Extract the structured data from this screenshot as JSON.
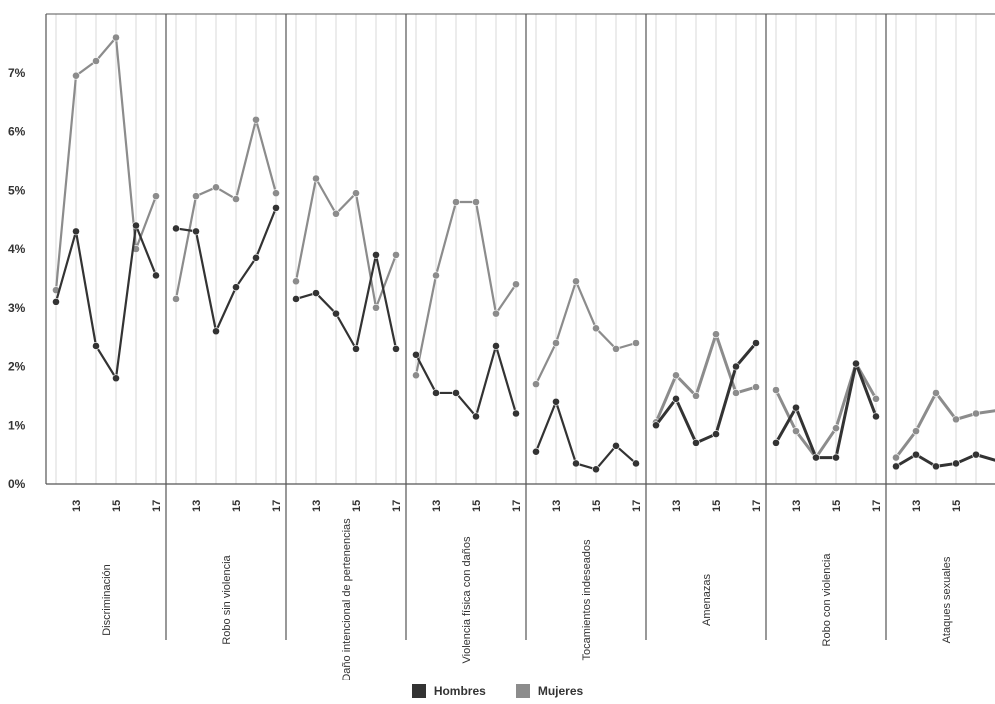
{
  "colors": {
    "hombres": "#333333",
    "mujeres": "#8c8c8c",
    "grid": "#d9d9d9",
    "divider": "#555555"
  },
  "chart_data": {
    "type": "line",
    "title": "",
    "xlabel": "",
    "ylabel": "",
    "ylim": [
      0,
      8
    ],
    "yticks": [
      "0%",
      "1%",
      "2%",
      "3%",
      "4%",
      "5%",
      "6%",
      "7%"
    ],
    "x": [
      12,
      13,
      14,
      15,
      16,
      17
    ],
    "xtick_labels": [
      "13",
      "15",
      "17"
    ],
    "categories": [
      "Discriminación",
      "Robo sin violencia",
      "Daño intencional de pertenencias",
      "Violencia física con daños",
      "Tocamientos indeseados",
      "Amenazas",
      "Robo con violencia",
      "Ataques sexuales"
    ],
    "series": [
      {
        "name": "Hombres",
        "values": [
          [
            3.1,
            4.3,
            2.35,
            1.8,
            4.4,
            3.55
          ],
          [
            4.35,
            4.3,
            2.6,
            3.35,
            3.85,
            4.7
          ],
          [
            3.15,
            3.25,
            2.9,
            2.3,
            3.9,
            2.3
          ],
          [
            2.2,
            1.55,
            1.55,
            1.15,
            2.35,
            1.2
          ],
          [
            0.55,
            1.4,
            0.35,
            0.25,
            0.65,
            0.35
          ],
          [
            1.0,
            1.45,
            0.7,
            0.85,
            2.0,
            2.4
          ],
          [
            0.7,
            1.3,
            0.45,
            0.45,
            2.05,
            1.15
          ],
          [
            0.3,
            0.5,
            0.3,
            0.35,
            0.5,
            0.4
          ]
        ]
      },
      {
        "name": "Mujeres",
        "values": [
          [
            3.3,
            6.95,
            7.2,
            7.6,
            4.0,
            4.9
          ],
          [
            3.15,
            4.9,
            5.05,
            4.85,
            6.2,
            4.95
          ],
          [
            3.45,
            5.2,
            4.6,
            4.95,
            3.0,
            3.9
          ],
          [
            1.85,
            3.55,
            4.8,
            4.8,
            2.9,
            3.4
          ],
          [
            1.7,
            2.4,
            3.45,
            2.65,
            2.3,
            2.4
          ],
          [
            1.05,
            1.85,
            1.5,
            2.55,
            1.55,
            1.65
          ],
          [
            1.6,
            0.9,
            0.45,
            0.95,
            2.05,
            1.45
          ],
          [
            0.45,
            0.9,
            1.55,
            1.1,
            1.2,
            1.25
          ]
        ]
      }
    ],
    "legend_position": "bottom-center",
    "grid": true
  }
}
